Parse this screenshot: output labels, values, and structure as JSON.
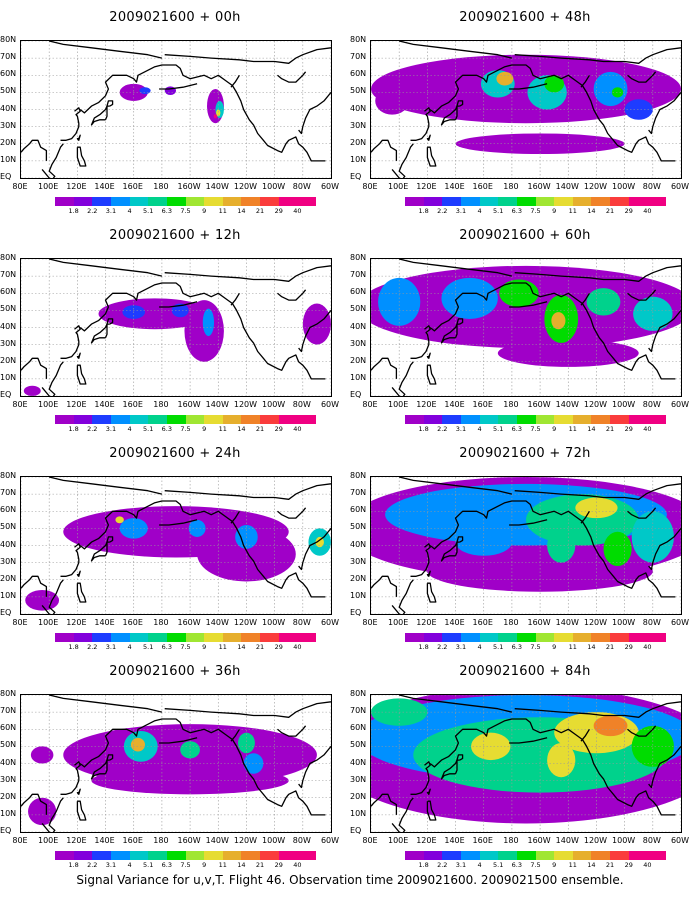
{
  "caption": "Signal Variance for u,v,T. Flight 46. Observation time 2009021600. 2009021500 ensemble.",
  "chart_data": {
    "type": "heatmap",
    "lat_ticks": [
      "80N",
      "70N",
      "60N",
      "50N",
      "40N",
      "30N",
      "20N",
      "10N",
      "EQ"
    ],
    "lon_ticks": [
      "80E",
      "100E",
      "120E",
      "140E",
      "160E",
      "180",
      "160W",
      "140W",
      "120W",
      "100W",
      "80W",
      "60W"
    ],
    "lon_range": [
      80,
      300
    ],
    "lat_range": [
      0,
      80
    ],
    "colorbar": {
      "levels": [
        "1.8",
        "2.2",
        "3.1",
        "4",
        "5.1",
        "6.3",
        "7.5",
        "9",
        "11",
        "14",
        "21",
        "29",
        "40"
      ],
      "colors": [
        "#a000c8",
        "#8200dc",
        "#1e3cff",
        "#0090ff",
        "#00c8c8",
        "#00d28c",
        "#00dc00",
        "#a0e632",
        "#e6dc32",
        "#e6af2d",
        "#f08228",
        "#fa3c3c",
        "#f00082"
      ]
    },
    "panels": [
      {
        "title": "2009021600 + 00h",
        "blobs": [
          {
            "lon": 160,
            "lat": 50,
            "rx": 10,
            "ry": 5,
            "level": 0
          },
          {
            "lon": 168,
            "lat": 51,
            "rx": 4,
            "ry": 2,
            "level": 2
          },
          {
            "lon": 186,
            "lat": 51,
            "rx": 4,
            "ry": 2.5,
            "level": 1
          },
          {
            "lon": 218,
            "lat": 42,
            "rx": 6,
            "ry": 10,
            "level": 0
          },
          {
            "lon": 221,
            "lat": 40,
            "rx": 3,
            "ry": 5,
            "level": 4
          },
          {
            "lon": 220,
            "lat": 38,
            "rx": 1.5,
            "ry": 2,
            "level": 8
          },
          {
            "lon": 218,
            "lat": 36,
            "rx": 1.2,
            "ry": 1.2,
            "level": 12
          }
        ]
      },
      {
        "title": "2009021600 + 12h",
        "blobs": [
          {
            "lon": 175,
            "lat": 48,
            "rx": 40,
            "ry": 9,
            "level": 0
          },
          {
            "lon": 210,
            "lat": 38,
            "rx": 14,
            "ry": 18,
            "level": 0
          },
          {
            "lon": 160,
            "lat": 49,
            "rx": 8,
            "ry": 4,
            "level": 2
          },
          {
            "lon": 193,
            "lat": 50,
            "rx": 6,
            "ry": 4,
            "level": 2
          },
          {
            "lon": 213,
            "lat": 43,
            "rx": 4,
            "ry": 8,
            "level": 3
          },
          {
            "lon": 290,
            "lat": 42,
            "rx": 10,
            "ry": 12,
            "level": 0
          },
          {
            "lon": 88,
            "lat": 3,
            "rx": 6,
            "ry": 3,
            "level": 0
          }
        ]
      },
      {
        "title": "2009021600 + 24h",
        "blobs": [
          {
            "lon": 190,
            "lat": 48,
            "rx": 80,
            "ry": 15,
            "level": 0
          },
          {
            "lon": 240,
            "lat": 35,
            "rx": 35,
            "ry": 16,
            "level": 0
          },
          {
            "lon": 160,
            "lat": 50,
            "rx": 10,
            "ry": 6,
            "level": 3
          },
          {
            "lon": 150,
            "lat": 55,
            "rx": 3,
            "ry": 2,
            "level": 8
          },
          {
            "lon": 205,
            "lat": 50,
            "rx": 6,
            "ry": 5,
            "level": 3
          },
          {
            "lon": 240,
            "lat": 45,
            "rx": 8,
            "ry": 7,
            "level": 3
          },
          {
            "lon": 292,
            "lat": 42,
            "rx": 8,
            "ry": 8,
            "level": 4
          },
          {
            "lon": 292,
            "lat": 42,
            "rx": 3,
            "ry": 3,
            "level": 8
          },
          {
            "lon": 95,
            "lat": 8,
            "rx": 12,
            "ry": 6,
            "level": 0
          }
        ]
      },
      {
        "title": "2009021600 + 36h",
        "blobs": [
          {
            "lon": 200,
            "lat": 45,
            "rx": 90,
            "ry": 18,
            "level": 0
          },
          {
            "lon": 200,
            "lat": 30,
            "rx": 70,
            "ry": 8,
            "level": 0
          },
          {
            "lon": 165,
            "lat": 50,
            "rx": 12,
            "ry": 9,
            "level": 4
          },
          {
            "lon": 163,
            "lat": 51,
            "rx": 5,
            "ry": 4,
            "level": 9
          },
          {
            "lon": 200,
            "lat": 48,
            "rx": 7,
            "ry": 5,
            "level": 5
          },
          {
            "lon": 240,
            "lat": 52,
            "rx": 6,
            "ry": 6,
            "level": 5
          },
          {
            "lon": 245,
            "lat": 40,
            "rx": 7,
            "ry": 6,
            "level": 3
          },
          {
            "lon": 95,
            "lat": 45,
            "rx": 8,
            "ry": 5,
            "level": 0
          },
          {
            "lon": 95,
            "lat": 12,
            "rx": 10,
            "ry": 8,
            "level": 0
          }
        ]
      },
      {
        "title": "2009021600 + 48h",
        "blobs": [
          {
            "lon": 190,
            "lat": 52,
            "rx": 110,
            "ry": 20,
            "level": 0
          },
          {
            "lon": 200,
            "lat": 20,
            "rx": 60,
            "ry": 6,
            "level": 0
          },
          {
            "lon": 170,
            "lat": 55,
            "rx": 12,
            "ry": 8,
            "level": 4
          },
          {
            "lon": 175,
            "lat": 58,
            "rx": 6,
            "ry": 4,
            "level": 9
          },
          {
            "lon": 205,
            "lat": 50,
            "rx": 14,
            "ry": 10,
            "level": 4
          },
          {
            "lon": 210,
            "lat": 55,
            "rx": 7,
            "ry": 5,
            "level": 6
          },
          {
            "lon": 250,
            "lat": 52,
            "rx": 12,
            "ry": 10,
            "level": 3
          },
          {
            "lon": 255,
            "lat": 50,
            "rx": 4,
            "ry": 3,
            "level": 6
          },
          {
            "lon": 270,
            "lat": 40,
            "rx": 10,
            "ry": 6,
            "level": 2
          },
          {
            "lon": 95,
            "lat": 45,
            "rx": 12,
            "ry": 8,
            "level": 0
          }
        ]
      },
      {
        "title": "2009021600 + 60h",
        "blobs": [
          {
            "lon": 190,
            "lat": 52,
            "rx": 120,
            "ry": 24,
            "level": 0
          },
          {
            "lon": 220,
            "lat": 25,
            "rx": 50,
            "ry": 8,
            "level": 0
          },
          {
            "lon": 150,
            "lat": 57,
            "rx": 20,
            "ry": 12,
            "level": 3
          },
          {
            "lon": 100,
            "lat": 55,
            "rx": 15,
            "ry": 14,
            "level": 3
          },
          {
            "lon": 185,
            "lat": 60,
            "rx": 14,
            "ry": 8,
            "level": 6
          },
          {
            "lon": 215,
            "lat": 45,
            "rx": 12,
            "ry": 14,
            "level": 6
          },
          {
            "lon": 213,
            "lat": 44,
            "rx": 5,
            "ry": 5,
            "level": 9
          },
          {
            "lon": 245,
            "lat": 55,
            "rx": 12,
            "ry": 8,
            "level": 5
          },
          {
            "lon": 280,
            "lat": 48,
            "rx": 14,
            "ry": 10,
            "level": 4
          }
        ]
      },
      {
        "title": "2009021600 + 72h",
        "blobs": [
          {
            "lon": 190,
            "lat": 50,
            "rx": 130,
            "ry": 30,
            "level": 0
          },
          {
            "lon": 200,
            "lat": 25,
            "rx": 80,
            "ry": 12,
            "level": 0
          },
          {
            "lon": 190,
            "lat": 58,
            "rx": 100,
            "ry": 18,
            "level": 3
          },
          {
            "lon": 230,
            "lat": 55,
            "rx": 40,
            "ry": 15,
            "level": 5
          },
          {
            "lon": 240,
            "lat": 62,
            "rx": 15,
            "ry": 6,
            "level": 8
          },
          {
            "lon": 215,
            "lat": 40,
            "rx": 10,
            "ry": 10,
            "level": 5
          },
          {
            "lon": 255,
            "lat": 38,
            "rx": 10,
            "ry": 10,
            "level": 6
          },
          {
            "lon": 160,
            "lat": 42,
            "rx": 20,
            "ry": 8,
            "level": 3
          },
          {
            "lon": 280,
            "lat": 45,
            "rx": 15,
            "ry": 15,
            "level": 4
          }
        ]
      },
      {
        "title": "2009021600 + 84h",
        "blobs": [
          {
            "lon": 190,
            "lat": 45,
            "rx": 140,
            "ry": 40,
            "level": 0
          },
          {
            "lon": 190,
            "lat": 55,
            "rx": 120,
            "ry": 25,
            "level": 3
          },
          {
            "lon": 200,
            "lat": 45,
            "rx": 90,
            "ry": 22,
            "level": 5
          },
          {
            "lon": 240,
            "lat": 58,
            "rx": 30,
            "ry": 12,
            "level": 8
          },
          {
            "lon": 250,
            "lat": 62,
            "rx": 12,
            "ry": 6,
            "level": 10
          },
          {
            "lon": 165,
            "lat": 50,
            "rx": 14,
            "ry": 8,
            "level": 8
          },
          {
            "lon": 215,
            "lat": 42,
            "rx": 10,
            "ry": 10,
            "level": 8
          },
          {
            "lon": 280,
            "lat": 50,
            "rx": 15,
            "ry": 12,
            "level": 6
          },
          {
            "lon": 100,
            "lat": 70,
            "rx": 20,
            "ry": 8,
            "level": 5
          }
        ]
      }
    ]
  }
}
